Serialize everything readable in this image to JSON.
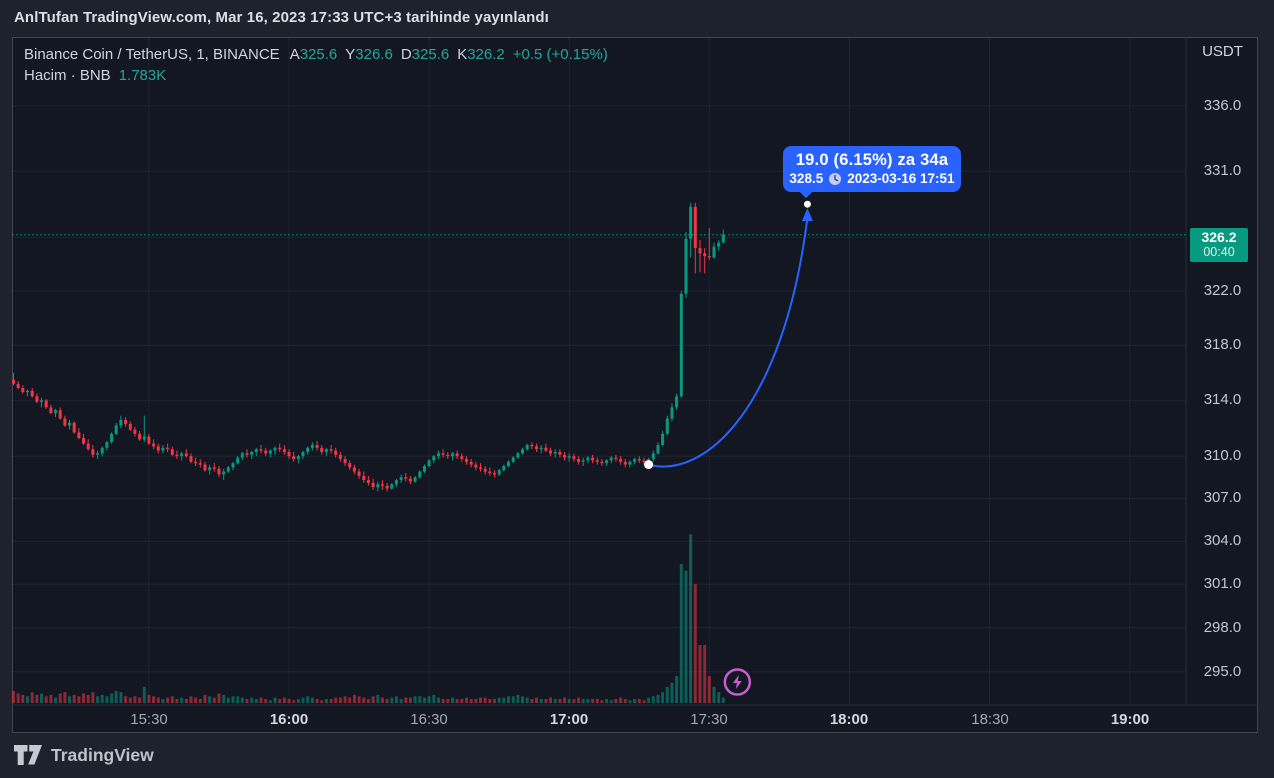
{
  "publish_bar": {
    "text": "AnlTufan TradingView.com, Mar 16, 2023 17:33 UTC+3 tarihinde yayınlandı"
  },
  "legend": {
    "symbol_line": "Binance Coin / TetherUS, 1, BINANCE",
    "ohlc": [
      {
        "label": "A",
        "value": "325.6"
      },
      {
        "label": "Y",
        "value": "326.6"
      },
      {
        "label": "D",
        "value": "325.6"
      },
      {
        "label": "K",
        "value": "326.2"
      }
    ],
    "change": "+0.5 (+0.15%)",
    "volume_label": "Hacim · BNB",
    "volume_value": "1.783K"
  },
  "price_scale": {
    "currency": "USDT",
    "tick_prices": [
      336.0,
      331.0,
      326.0,
      322.0,
      318.0,
      314.0,
      310.0,
      307.0,
      304.0,
      301.0,
      298.0,
      295.0
    ],
    "last_price_badge": {
      "price": "326.2",
      "countdown": "00:40"
    }
  },
  "time_scale": {
    "labels": [
      {
        "text": "15:30",
        "bold": false
      },
      {
        "text": "16:00",
        "bold": true
      },
      {
        "text": "16:30",
        "bold": false
      },
      {
        "text": "17:00",
        "bold": true
      },
      {
        "text": "17:30",
        "bold": false
      },
      {
        "text": "18:00",
        "bold": true
      },
      {
        "text": "18:30",
        "bold": false
      },
      {
        "text": "19:00",
        "bold": true
      }
    ]
  },
  "tooltip": {
    "title": "19.0 (6.15%) za 34a",
    "price": "328.5",
    "datetime": "2023-03-16  17:51"
  },
  "footer": {
    "logo_text": "TradingView"
  },
  "colors": {
    "up": "#089981",
    "down": "#f23645",
    "accent_blue": "#2962ff",
    "badge": "#089981",
    "marker_purple": "#c65ecf",
    "bg_outer": "#1e222d",
    "bg_chart": "#131722",
    "legend_value": "#26a69a"
  },
  "chart_data": {
    "type": "candlestick",
    "title": "Binance Coin / TetherUS, 1, BINANCE",
    "interval_minutes": 1,
    "scale": "log",
    "start_time": "15:01",
    "end_time": "17:33",
    "xlim": [
      "15:01",
      "19:27"
    ],
    "ylim": [
      292.8,
      341.4
    ],
    "grid": true,
    "price_line": 326.2,
    "last_bar": {
      "open": 325.6,
      "high": 326.6,
      "low": 325.6,
      "close": 326.2,
      "volume": "1.783K"
    },
    "candles": [
      [
        315.5,
        316.0,
        315.1,
        315.2
      ],
      [
        315.2,
        315.4,
        314.8,
        314.9
      ],
      [
        314.9,
        315.1,
        314.5,
        314.6
      ],
      [
        314.6,
        314.8,
        314.3,
        314.7
      ],
      [
        314.7,
        314.9,
        314.2,
        314.3
      ],
      [
        314.3,
        314.5,
        313.8,
        313.9
      ],
      [
        313.9,
        314.2,
        313.5,
        314.0
      ],
      [
        314.0,
        314.1,
        313.4,
        313.5
      ],
      [
        313.5,
        313.7,
        313.0,
        313.1
      ],
      [
        313.1,
        313.4,
        312.8,
        313.3
      ],
      [
        313.3,
        313.5,
        312.6,
        312.7
      ],
      [
        312.7,
        312.9,
        312.1,
        312.2
      ],
      [
        312.2,
        312.6,
        311.9,
        312.4
      ],
      [
        312.4,
        312.5,
        311.6,
        311.7
      ],
      [
        311.7,
        312.0,
        311.2,
        311.3
      ],
      [
        311.3,
        311.6,
        310.8,
        310.9
      ],
      [
        310.9,
        311.2,
        310.4,
        310.5
      ],
      [
        310.5,
        310.8,
        309.9,
        310.1
      ],
      [
        310.1,
        310.4,
        309.8,
        310.2
      ],
      [
        310.2,
        310.7,
        310.0,
        310.6
      ],
      [
        310.6,
        311.1,
        310.4,
        311.0
      ],
      [
        311.0,
        311.7,
        310.9,
        311.6
      ],
      [
        311.6,
        312.4,
        311.5,
        312.2
      ],
      [
        312.2,
        312.9,
        312.0,
        312.6
      ],
      [
        312.6,
        312.8,
        312.1,
        312.3
      ],
      [
        312.3,
        312.5,
        311.8,
        311.9
      ],
      [
        311.9,
        312.1,
        311.4,
        311.6
      ],
      [
        311.6,
        311.8,
        311.1,
        311.2
      ],
      [
        311.2,
        312.9,
        311.0,
        311.4
      ],
      [
        311.4,
        311.6,
        310.8,
        310.9
      ],
      [
        310.9,
        311.2,
        310.5,
        310.7
      ],
      [
        310.7,
        310.9,
        310.2,
        310.4
      ],
      [
        310.4,
        310.8,
        310.2,
        310.6
      ],
      [
        310.6,
        310.9,
        310.3,
        310.5
      ],
      [
        310.5,
        310.7,
        310.0,
        310.1
      ],
      [
        310.1,
        310.4,
        309.8,
        310.0
      ],
      [
        310.0,
        310.3,
        309.7,
        310.2
      ],
      [
        310.2,
        310.5,
        309.9,
        310.0
      ],
      [
        310.0,
        310.2,
        309.5,
        309.6
      ],
      [
        309.6,
        309.9,
        309.3,
        309.5
      ],
      [
        309.5,
        309.8,
        309.2,
        309.4
      ],
      [
        309.4,
        309.6,
        308.9,
        309.0
      ],
      [
        309.0,
        309.4,
        308.7,
        309.2
      ],
      [
        309.2,
        309.5,
        308.9,
        309.1
      ],
      [
        309.1,
        309.3,
        308.5,
        308.7
      ],
      [
        308.7,
        309.1,
        308.3,
        308.9
      ],
      [
        308.9,
        309.3,
        308.8,
        309.2
      ],
      [
        309.2,
        309.6,
        309.0,
        309.5
      ],
      [
        309.5,
        310.0,
        309.4,
        309.9
      ],
      [
        309.9,
        310.3,
        309.7,
        310.2
      ],
      [
        310.2,
        310.5,
        309.9,
        310.1
      ],
      [
        310.1,
        310.4,
        309.8,
        310.3
      ],
      [
        310.3,
        310.6,
        310.0,
        310.5
      ],
      [
        310.5,
        310.8,
        310.2,
        310.4
      ],
      [
        310.4,
        310.6,
        310.0,
        310.2
      ],
      [
        310.2,
        310.5,
        309.9,
        310.4
      ],
      [
        310.4,
        310.7,
        310.1,
        310.6
      ],
      [
        310.6,
        310.9,
        310.3,
        310.5
      ],
      [
        310.5,
        310.8,
        310.1,
        310.3
      ],
      [
        310.3,
        310.5,
        309.8,
        310.0
      ],
      [
        310.0,
        310.3,
        309.6,
        309.8
      ],
      [
        309.8,
        310.1,
        309.5,
        310.0
      ],
      [
        310.0,
        310.4,
        309.8,
        310.3
      ],
      [
        310.3,
        310.7,
        310.1,
        310.6
      ],
      [
        310.6,
        311.0,
        310.4,
        310.8
      ],
      [
        310.8,
        311.1,
        310.4,
        310.6
      ],
      [
        310.6,
        310.8,
        310.1,
        310.3
      ],
      [
        310.3,
        310.6,
        310.0,
        310.5
      ],
      [
        310.5,
        310.8,
        310.2,
        310.4
      ],
      [
        310.4,
        310.6,
        309.9,
        310.1
      ],
      [
        310.1,
        310.3,
        309.6,
        309.8
      ],
      [
        309.8,
        310.0,
        309.3,
        309.5
      ],
      [
        309.5,
        309.7,
        309.0,
        309.2
      ],
      [
        309.2,
        309.4,
        308.7,
        308.9
      ],
      [
        308.9,
        309.1,
        308.4,
        308.6
      ],
      [
        308.6,
        308.9,
        308.1,
        308.3
      ],
      [
        308.3,
        308.6,
        307.9,
        308.1
      ],
      [
        308.1,
        308.4,
        307.6,
        307.8
      ],
      [
        307.8,
        308.2,
        307.5,
        308.0
      ],
      [
        308.0,
        308.3,
        307.6,
        307.9
      ],
      [
        307.9,
        308.1,
        307.5,
        307.7
      ],
      [
        307.7,
        308.1,
        307.6,
        308.0
      ],
      [
        308.0,
        308.4,
        307.8,
        308.3
      ],
      [
        308.3,
        308.7,
        308.1,
        308.5
      ],
      [
        308.5,
        308.8,
        308.2,
        308.4
      ],
      [
        308.4,
        308.6,
        308.0,
        308.2
      ],
      [
        308.2,
        308.6,
        308.1,
        308.5
      ],
      [
        308.5,
        309.0,
        308.4,
        308.9
      ],
      [
        308.9,
        309.4,
        308.8,
        309.3
      ],
      [
        309.3,
        309.8,
        309.2,
        309.7
      ],
      [
        309.7,
        310.1,
        309.5,
        310.0
      ],
      [
        310.0,
        310.4,
        309.8,
        310.2
      ],
      [
        310.2,
        310.5,
        309.9,
        310.1
      ],
      [
        310.1,
        310.3,
        309.8,
        310.0
      ],
      [
        310.0,
        310.3,
        309.7,
        310.2
      ],
      [
        310.2,
        310.4,
        309.8,
        310.0
      ],
      [
        310.0,
        310.2,
        309.6,
        309.8
      ],
      [
        309.8,
        310.0,
        309.4,
        309.6
      ],
      [
        309.6,
        309.8,
        309.2,
        309.4
      ],
      [
        309.4,
        309.6,
        309.0,
        309.2
      ],
      [
        309.2,
        309.5,
        308.9,
        309.1
      ],
      [
        309.1,
        309.3,
        308.7,
        308.9
      ],
      [
        308.9,
        309.2,
        308.6,
        308.8
      ],
      [
        308.8,
        309.0,
        308.5,
        308.7
      ],
      [
        308.7,
        309.1,
        308.6,
        309.0
      ],
      [
        309.0,
        309.4,
        308.9,
        309.3
      ],
      [
        309.3,
        309.7,
        309.2,
        309.6
      ],
      [
        309.6,
        310.0,
        309.5,
        309.9
      ],
      [
        309.9,
        310.3,
        309.8,
        310.2
      ],
      [
        310.2,
        310.6,
        310.1,
        310.5
      ],
      [
        310.5,
        310.9,
        310.4,
        310.8
      ],
      [
        310.8,
        311.0,
        310.5,
        310.7
      ],
      [
        310.7,
        310.9,
        310.3,
        310.5
      ],
      [
        310.5,
        310.8,
        310.2,
        310.6
      ],
      [
        310.6,
        310.9,
        310.3,
        310.4
      ],
      [
        310.4,
        310.6,
        310.0,
        310.2
      ],
      [
        310.2,
        310.5,
        309.9,
        310.3
      ],
      [
        310.3,
        310.5,
        309.9,
        310.1
      ],
      [
        310.1,
        310.3,
        309.7,
        309.9
      ],
      [
        309.9,
        310.2,
        309.6,
        310.0
      ],
      [
        310.0,
        310.2,
        309.6,
        309.8
      ],
      [
        309.8,
        310.0,
        309.4,
        309.6
      ],
      [
        309.6,
        309.9,
        309.3,
        309.7
      ],
      [
        309.7,
        310.0,
        309.5,
        309.9
      ],
      [
        309.9,
        310.1,
        309.5,
        309.7
      ],
      [
        309.7,
        309.9,
        309.4,
        309.6
      ],
      [
        309.6,
        309.8,
        309.3,
        309.5
      ],
      [
        309.5,
        309.8,
        309.3,
        309.7
      ],
      [
        309.7,
        310.0,
        309.5,
        309.9
      ],
      [
        309.9,
        310.1,
        309.6,
        309.8
      ],
      [
        309.8,
        310.0,
        309.4,
        309.6
      ],
      [
        309.6,
        309.8,
        309.2,
        309.4
      ],
      [
        309.4,
        309.7,
        309.2,
        309.6
      ],
      [
        309.6,
        309.9,
        309.4,
        309.8
      ],
      [
        309.8,
        310.0,
        309.5,
        309.7
      ],
      [
        309.7,
        309.9,
        309.4,
        309.6
      ],
      [
        309.6,
        309.9,
        309.4,
        309.8
      ],
      [
        309.8,
        310.4,
        309.6,
        310.2
      ],
      [
        310.2,
        311.0,
        310.1,
        310.8
      ],
      [
        310.8,
        311.8,
        310.7,
        311.6
      ],
      [
        311.6,
        312.9,
        311.5,
        312.7
      ],
      [
        312.7,
        313.8,
        312.5,
        313.5
      ],
      [
        313.5,
        314.5,
        313.3,
        314.3
      ],
      [
        314.3,
        322.0,
        314.2,
        321.8
      ],
      [
        321.8,
        326.4,
        321.5,
        325.9
      ],
      [
        325.9,
        328.6,
        324.5,
        328.3
      ],
      [
        328.3,
        328.6,
        323.3,
        325.2
      ],
      [
        325.2,
        325.8,
        323.4,
        324.8
      ],
      [
        324.8,
        325.2,
        323.3,
        324.6
      ],
      [
        324.6,
        326.7,
        324.3,
        324.5
      ],
      [
        324.5,
        325.6,
        324.4,
        325.3
      ],
      [
        325.3,
        325.8,
        325.0,
        325.6
      ],
      [
        325.6,
        326.6,
        325.6,
        326.2
      ]
    ],
    "volumes": [
      9,
      7,
      6,
      5,
      8,
      6,
      7,
      5,
      6,
      4,
      7,
      8,
      5,
      6,
      5,
      7,
      6,
      8,
      5,
      6,
      5,
      7,
      9,
      8,
      5,
      4,
      5,
      4,
      12,
      6,
      5,
      4,
      3,
      4,
      5,
      3,
      4,
      3,
      5,
      4,
      3,
      6,
      5,
      4,
      7,
      6,
      4,
      5,
      5,
      4,
      3,
      4,
      3,
      4,
      3,
      2,
      4,
      3,
      4,
      3,
      2,
      3,
      4,
      5,
      4,
      3,
      2,
      3,
      3,
      4,
      4,
      5,
      4,
      6,
      5,
      4,
      3,
      5,
      6,
      4,
      3,
      4,
      5,
      3,
      4,
      4,
      5,
      5,
      4,
      5,
      6,
      4,
      3,
      3,
      4,
      3,
      3,
      4,
      3,
      3,
      4,
      4,
      3,
      3,
      4,
      4,
      5,
      5,
      6,
      5,
      4,
      3,
      4,
      3,
      3,
      4,
      3,
      3,
      4,
      3,
      3,
      4,
      3,
      3,
      3,
      3,
      2,
      3,
      2,
      3,
      4,
      3,
      2,
      3,
      3,
      2,
      4,
      5,
      6,
      8,
      12,
      15,
      20,
      103,
      98,
      125,
      88,
      43,
      43,
      20,
      12,
      8,
      4
    ],
    "measure_drawing": {
      "from": {
        "time": "17:17",
        "price": 309.4
      },
      "to": {
        "time": "17:51",
        "price": 328.5
      },
      "change": "+19.0",
      "percent": "+6.15%",
      "bars": 34
    },
    "marker": {
      "icon": "lightning-icon",
      "time": "17:36"
    }
  }
}
